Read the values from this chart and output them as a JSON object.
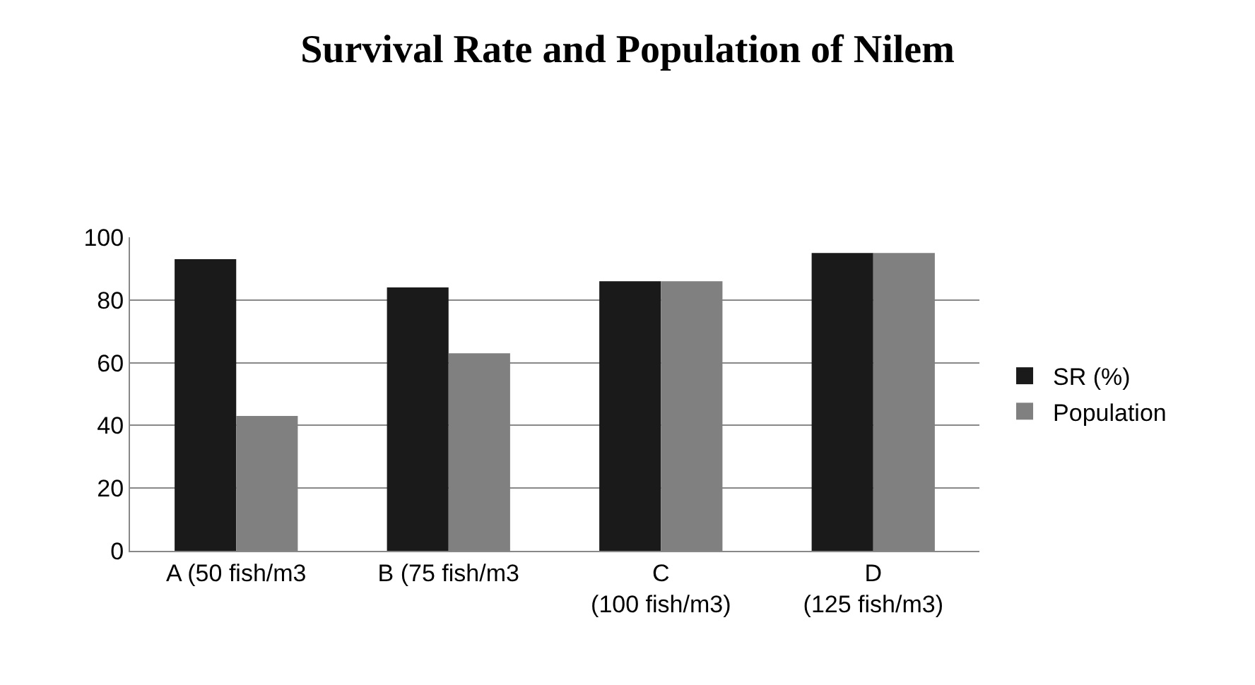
{
  "chart_data": {
    "type": "bar",
    "title": "Survival Rate and Population of Nilem",
    "categories": [
      "A (50 fish/m3",
      "B (75 fish/m3",
      "C (100 fish/m3)",
      "D (125 fish/m3)"
    ],
    "series": [
      {
        "name": "SR (%)",
        "color": "#1a1a1a",
        "values": [
          93,
          84,
          86,
          95
        ]
      },
      {
        "name": "Population",
        "color": "#808080",
        "values": [
          43,
          63,
          86,
          95
        ]
      }
    ],
    "ylim": [
      0,
      100
    ],
    "yticks": [
      0,
      20,
      40,
      60,
      80,
      100
    ],
    "grid": "y",
    "legend": "right"
  }
}
